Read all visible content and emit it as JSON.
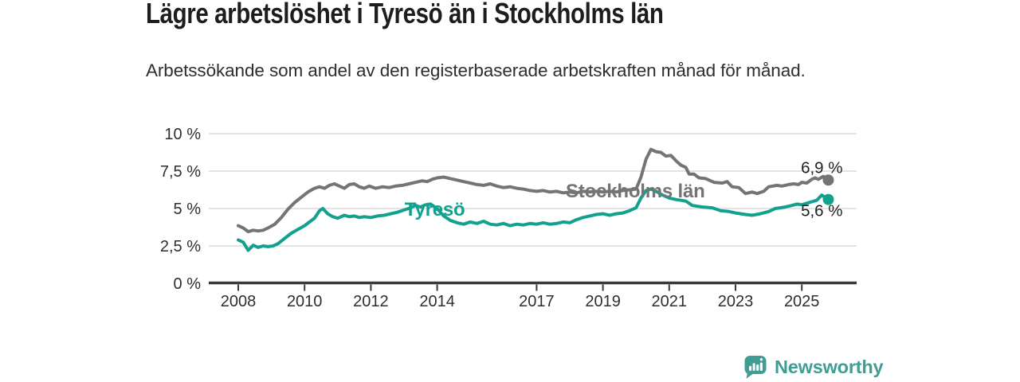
{
  "header": {
    "title": "Lägre arbetslöshet i Tyresö än i Stockholms län",
    "subtitle": "Arbetssökande som andel av den registerbaserade arbetskraften månad för månad."
  },
  "footer": {
    "brand": "Newsworthy",
    "logo_icon": "bar-chart-speech-bubble-icon"
  },
  "colors": {
    "stockholm_line": "#747474",
    "tyreso_line": "#12a18e",
    "brand_teal": "#3f9d96",
    "grid": "#dbdbdb",
    "axis": "#3a3a3a",
    "tick_text": "#2e2e2e",
    "title_text": "#1d1d1d"
  },
  "chart_data": {
    "type": "line",
    "xlabel": "",
    "ylabel": "",
    "x_unit": "decimal year (monthly values)",
    "ylim": [
      0,
      10
    ],
    "xlim": [
      2007.1,
      2026.65
    ],
    "grid": "horizontal",
    "legend_position": "inline-labels",
    "y_ticks": [
      {
        "value": 0,
        "label": "0 %"
      },
      {
        "value": 2.5,
        "label": "2,5 %"
      },
      {
        "value": 5,
        "label": "5 %"
      },
      {
        "value": 7.5,
        "label": "7,5 %"
      },
      {
        "value": 10,
        "label": "10 %"
      }
    ],
    "x_ticks": [
      {
        "value": 2008,
        "label": "2008"
      },
      {
        "value": 2010,
        "label": "2010"
      },
      {
        "value": 2012,
        "label": "2012"
      },
      {
        "value": 2014,
        "label": "2014"
      },
      {
        "value": 2017,
        "label": "2017"
      },
      {
        "value": 2019,
        "label": "2019"
      },
      {
        "value": 2021,
        "label": "2021"
      },
      {
        "value": 2023,
        "label": "2023"
      },
      {
        "value": 2025,
        "label": "2025"
      }
    ],
    "series": [
      {
        "id": "stockholm",
        "name": "Stockholms län",
        "color": "#747474",
        "end_label": "6,9 %",
        "end_value": 6.9,
        "label_anchor": {
          "x": 2017.88,
          "y": 5.75
        },
        "end_label_offset": {
          "dx": 18,
          "dy": -9
        },
        "points": [
          [
            2008.0,
            3.85
          ],
          [
            2008.15,
            3.7
          ],
          [
            2008.3,
            3.45
          ],
          [
            2008.45,
            3.55
          ],
          [
            2008.6,
            3.5
          ],
          [
            2008.75,
            3.55
          ],
          [
            2008.9,
            3.7
          ],
          [
            2009.1,
            3.95
          ],
          [
            2009.3,
            4.4
          ],
          [
            2009.5,
            4.95
          ],
          [
            2009.7,
            5.4
          ],
          [
            2009.9,
            5.75
          ],
          [
            2010.1,
            6.1
          ],
          [
            2010.3,
            6.35
          ],
          [
            2010.45,
            6.45
          ],
          [
            2010.6,
            6.35
          ],
          [
            2010.75,
            6.55
          ],
          [
            2010.9,
            6.65
          ],
          [
            2011.05,
            6.5
          ],
          [
            2011.2,
            6.35
          ],
          [
            2011.35,
            6.6
          ],
          [
            2011.5,
            6.65
          ],
          [
            2011.65,
            6.45
          ],
          [
            2011.8,
            6.35
          ],
          [
            2011.95,
            6.5
          ],
          [
            2012.15,
            6.35
          ],
          [
            2012.35,
            6.45
          ],
          [
            2012.55,
            6.4
          ],
          [
            2012.75,
            6.5
          ],
          [
            2012.95,
            6.55
          ],
          [
            2013.15,
            6.65
          ],
          [
            2013.35,
            6.75
          ],
          [
            2013.55,
            6.85
          ],
          [
            2013.7,
            6.8
          ],
          [
            2013.85,
            6.95
          ],
          [
            2014.0,
            7.05
          ],
          [
            2014.2,
            7.1
          ],
          [
            2014.4,
            7.0
          ],
          [
            2014.6,
            6.9
          ],
          [
            2014.8,
            6.8
          ],
          [
            2015.0,
            6.7
          ],
          [
            2015.2,
            6.6
          ],
          [
            2015.4,
            6.55
          ],
          [
            2015.6,
            6.65
          ],
          [
            2015.8,
            6.5
          ],
          [
            2016.0,
            6.4
          ],
          [
            2016.2,
            6.45
          ],
          [
            2016.4,
            6.35
          ],
          [
            2016.6,
            6.3
          ],
          [
            2016.8,
            6.2
          ],
          [
            2017.0,
            6.15
          ],
          [
            2017.2,
            6.2
          ],
          [
            2017.4,
            6.1
          ],
          [
            2017.6,
            6.15
          ],
          [
            2017.8,
            6.05
          ],
          [
            2018.0,
            6.1
          ],
          [
            2018.2,
            6.05
          ],
          [
            2018.4,
            6.15
          ],
          [
            2018.6,
            6.1
          ],
          [
            2018.8,
            6.15
          ],
          [
            2019.0,
            6.1
          ],
          [
            2019.2,
            6.15
          ],
          [
            2019.4,
            6.1
          ],
          [
            2019.6,
            6.2
          ],
          [
            2019.8,
            6.25
          ],
          [
            2020.0,
            6.3
          ],
          [
            2020.15,
            7.1
          ],
          [
            2020.3,
            8.3
          ],
          [
            2020.45,
            8.95
          ],
          [
            2020.6,
            8.8
          ],
          [
            2020.75,
            8.75
          ],
          [
            2020.9,
            8.5
          ],
          [
            2021.05,
            8.55
          ],
          [
            2021.2,
            8.2
          ],
          [
            2021.35,
            7.9
          ],
          [
            2021.5,
            7.75
          ],
          [
            2021.6,
            7.3
          ],
          [
            2021.75,
            7.3
          ],
          [
            2021.9,
            7.05
          ],
          [
            2022.1,
            7.0
          ],
          [
            2022.35,
            6.75
          ],
          [
            2022.6,
            6.7
          ],
          [
            2022.75,
            6.8
          ],
          [
            2022.9,
            6.45
          ],
          [
            2023.1,
            6.4
          ],
          [
            2023.3,
            6.0
          ],
          [
            2023.5,
            6.1
          ],
          [
            2023.65,
            6.0
          ],
          [
            2023.85,
            6.15
          ],
          [
            2024.0,
            6.45
          ],
          [
            2024.25,
            6.55
          ],
          [
            2024.4,
            6.5
          ],
          [
            2024.6,
            6.6
          ],
          [
            2024.75,
            6.65
          ],
          [
            2024.9,
            6.6
          ],
          [
            2025.0,
            6.75
          ],
          [
            2025.15,
            6.7
          ],
          [
            2025.3,
            6.95
          ],
          [
            2025.4,
            7.05
          ],
          [
            2025.5,
            6.95
          ],
          [
            2025.65,
            7.15
          ],
          [
            2025.8,
            6.9
          ]
        ]
      },
      {
        "id": "tyreso",
        "name": "Tyresö",
        "color": "#12a18e",
        "end_label": "5,6 %",
        "end_value": 5.6,
        "label_anchor": {
          "x": 2013.02,
          "y": 4.52
        },
        "end_label_offset": {
          "dx": 18,
          "dy": 21
        },
        "points": [
          [
            2008.0,
            2.9
          ],
          [
            2008.15,
            2.75
          ],
          [
            2008.3,
            2.2
          ],
          [
            2008.45,
            2.55
          ],
          [
            2008.6,
            2.4
          ],
          [
            2008.75,
            2.5
          ],
          [
            2008.9,
            2.45
          ],
          [
            2009.05,
            2.5
          ],
          [
            2009.2,
            2.65
          ],
          [
            2009.4,
            3.0
          ],
          [
            2009.6,
            3.35
          ],
          [
            2009.8,
            3.6
          ],
          [
            2010.0,
            3.85
          ],
          [
            2010.15,
            4.1
          ],
          [
            2010.3,
            4.35
          ],
          [
            2010.45,
            4.85
          ],
          [
            2010.55,
            5.0
          ],
          [
            2010.7,
            4.65
          ],
          [
            2010.85,
            4.45
          ],
          [
            2011.0,
            4.35
          ],
          [
            2011.2,
            4.55
          ],
          [
            2011.35,
            4.45
          ],
          [
            2011.5,
            4.5
          ],
          [
            2011.65,
            4.4
          ],
          [
            2011.8,
            4.45
          ],
          [
            2012.0,
            4.4
          ],
          [
            2012.2,
            4.5
          ],
          [
            2012.4,
            4.55
          ],
          [
            2012.6,
            4.65
          ],
          [
            2012.8,
            4.75
          ],
          [
            2013.0,
            4.9
          ],
          [
            2013.2,
            5.05
          ],
          [
            2013.35,
            5.2
          ],
          [
            2013.5,
            5.1
          ],
          [
            2013.65,
            5.25
          ],
          [
            2013.8,
            5.3
          ],
          [
            2014.0,
            5.0
          ],
          [
            2014.2,
            4.5
          ],
          [
            2014.4,
            4.2
          ],
          [
            2014.6,
            4.05
          ],
          [
            2014.8,
            3.95
          ],
          [
            2015.0,
            4.1
          ],
          [
            2015.2,
            4.0
          ],
          [
            2015.4,
            4.15
          ],
          [
            2015.6,
            3.95
          ],
          [
            2015.8,
            3.9
          ],
          [
            2016.0,
            4.0
          ],
          [
            2016.2,
            3.85
          ],
          [
            2016.4,
            3.95
          ],
          [
            2016.6,
            3.9
          ],
          [
            2016.8,
            4.0
          ],
          [
            2017.0,
            3.95
          ],
          [
            2017.2,
            4.05
          ],
          [
            2017.4,
            3.95
          ],
          [
            2017.6,
            4.0
          ],
          [
            2017.8,
            4.1
          ],
          [
            2018.0,
            4.05
          ],
          [
            2018.2,
            4.25
          ],
          [
            2018.4,
            4.4
          ],
          [
            2018.6,
            4.5
          ],
          [
            2018.8,
            4.6
          ],
          [
            2019.0,
            4.65
          ],
          [
            2019.2,
            4.55
          ],
          [
            2019.4,
            4.65
          ],
          [
            2019.6,
            4.7
          ],
          [
            2019.8,
            4.85
          ],
          [
            2020.0,
            5.05
          ],
          [
            2020.15,
            5.7
          ],
          [
            2020.3,
            6.2
          ],
          [
            2020.45,
            6.3
          ],
          [
            2020.6,
            6.15
          ],
          [
            2020.8,
            5.9
          ],
          [
            2021.0,
            5.7
          ],
          [
            2021.2,
            5.6
          ],
          [
            2021.35,
            5.55
          ],
          [
            2021.5,
            5.5
          ],
          [
            2021.7,
            5.2
          ],
          [
            2022.0,
            5.1
          ],
          [
            2022.3,
            5.05
          ],
          [
            2022.55,
            4.85
          ],
          [
            2022.8,
            4.8
          ],
          [
            2023.0,
            4.7
          ],
          [
            2023.3,
            4.6
          ],
          [
            2023.5,
            4.55
          ],
          [
            2023.75,
            4.65
          ],
          [
            2024.0,
            4.8
          ],
          [
            2024.2,
            5.0
          ],
          [
            2024.35,
            5.05
          ],
          [
            2024.5,
            5.1
          ],
          [
            2024.7,
            5.2
          ],
          [
            2024.85,
            5.3
          ],
          [
            2025.0,
            5.25
          ],
          [
            2025.15,
            5.35
          ],
          [
            2025.3,
            5.45
          ],
          [
            2025.45,
            5.55
          ],
          [
            2025.6,
            5.9
          ],
          [
            2025.7,
            5.75
          ],
          [
            2025.8,
            5.6
          ]
        ]
      }
    ]
  }
}
